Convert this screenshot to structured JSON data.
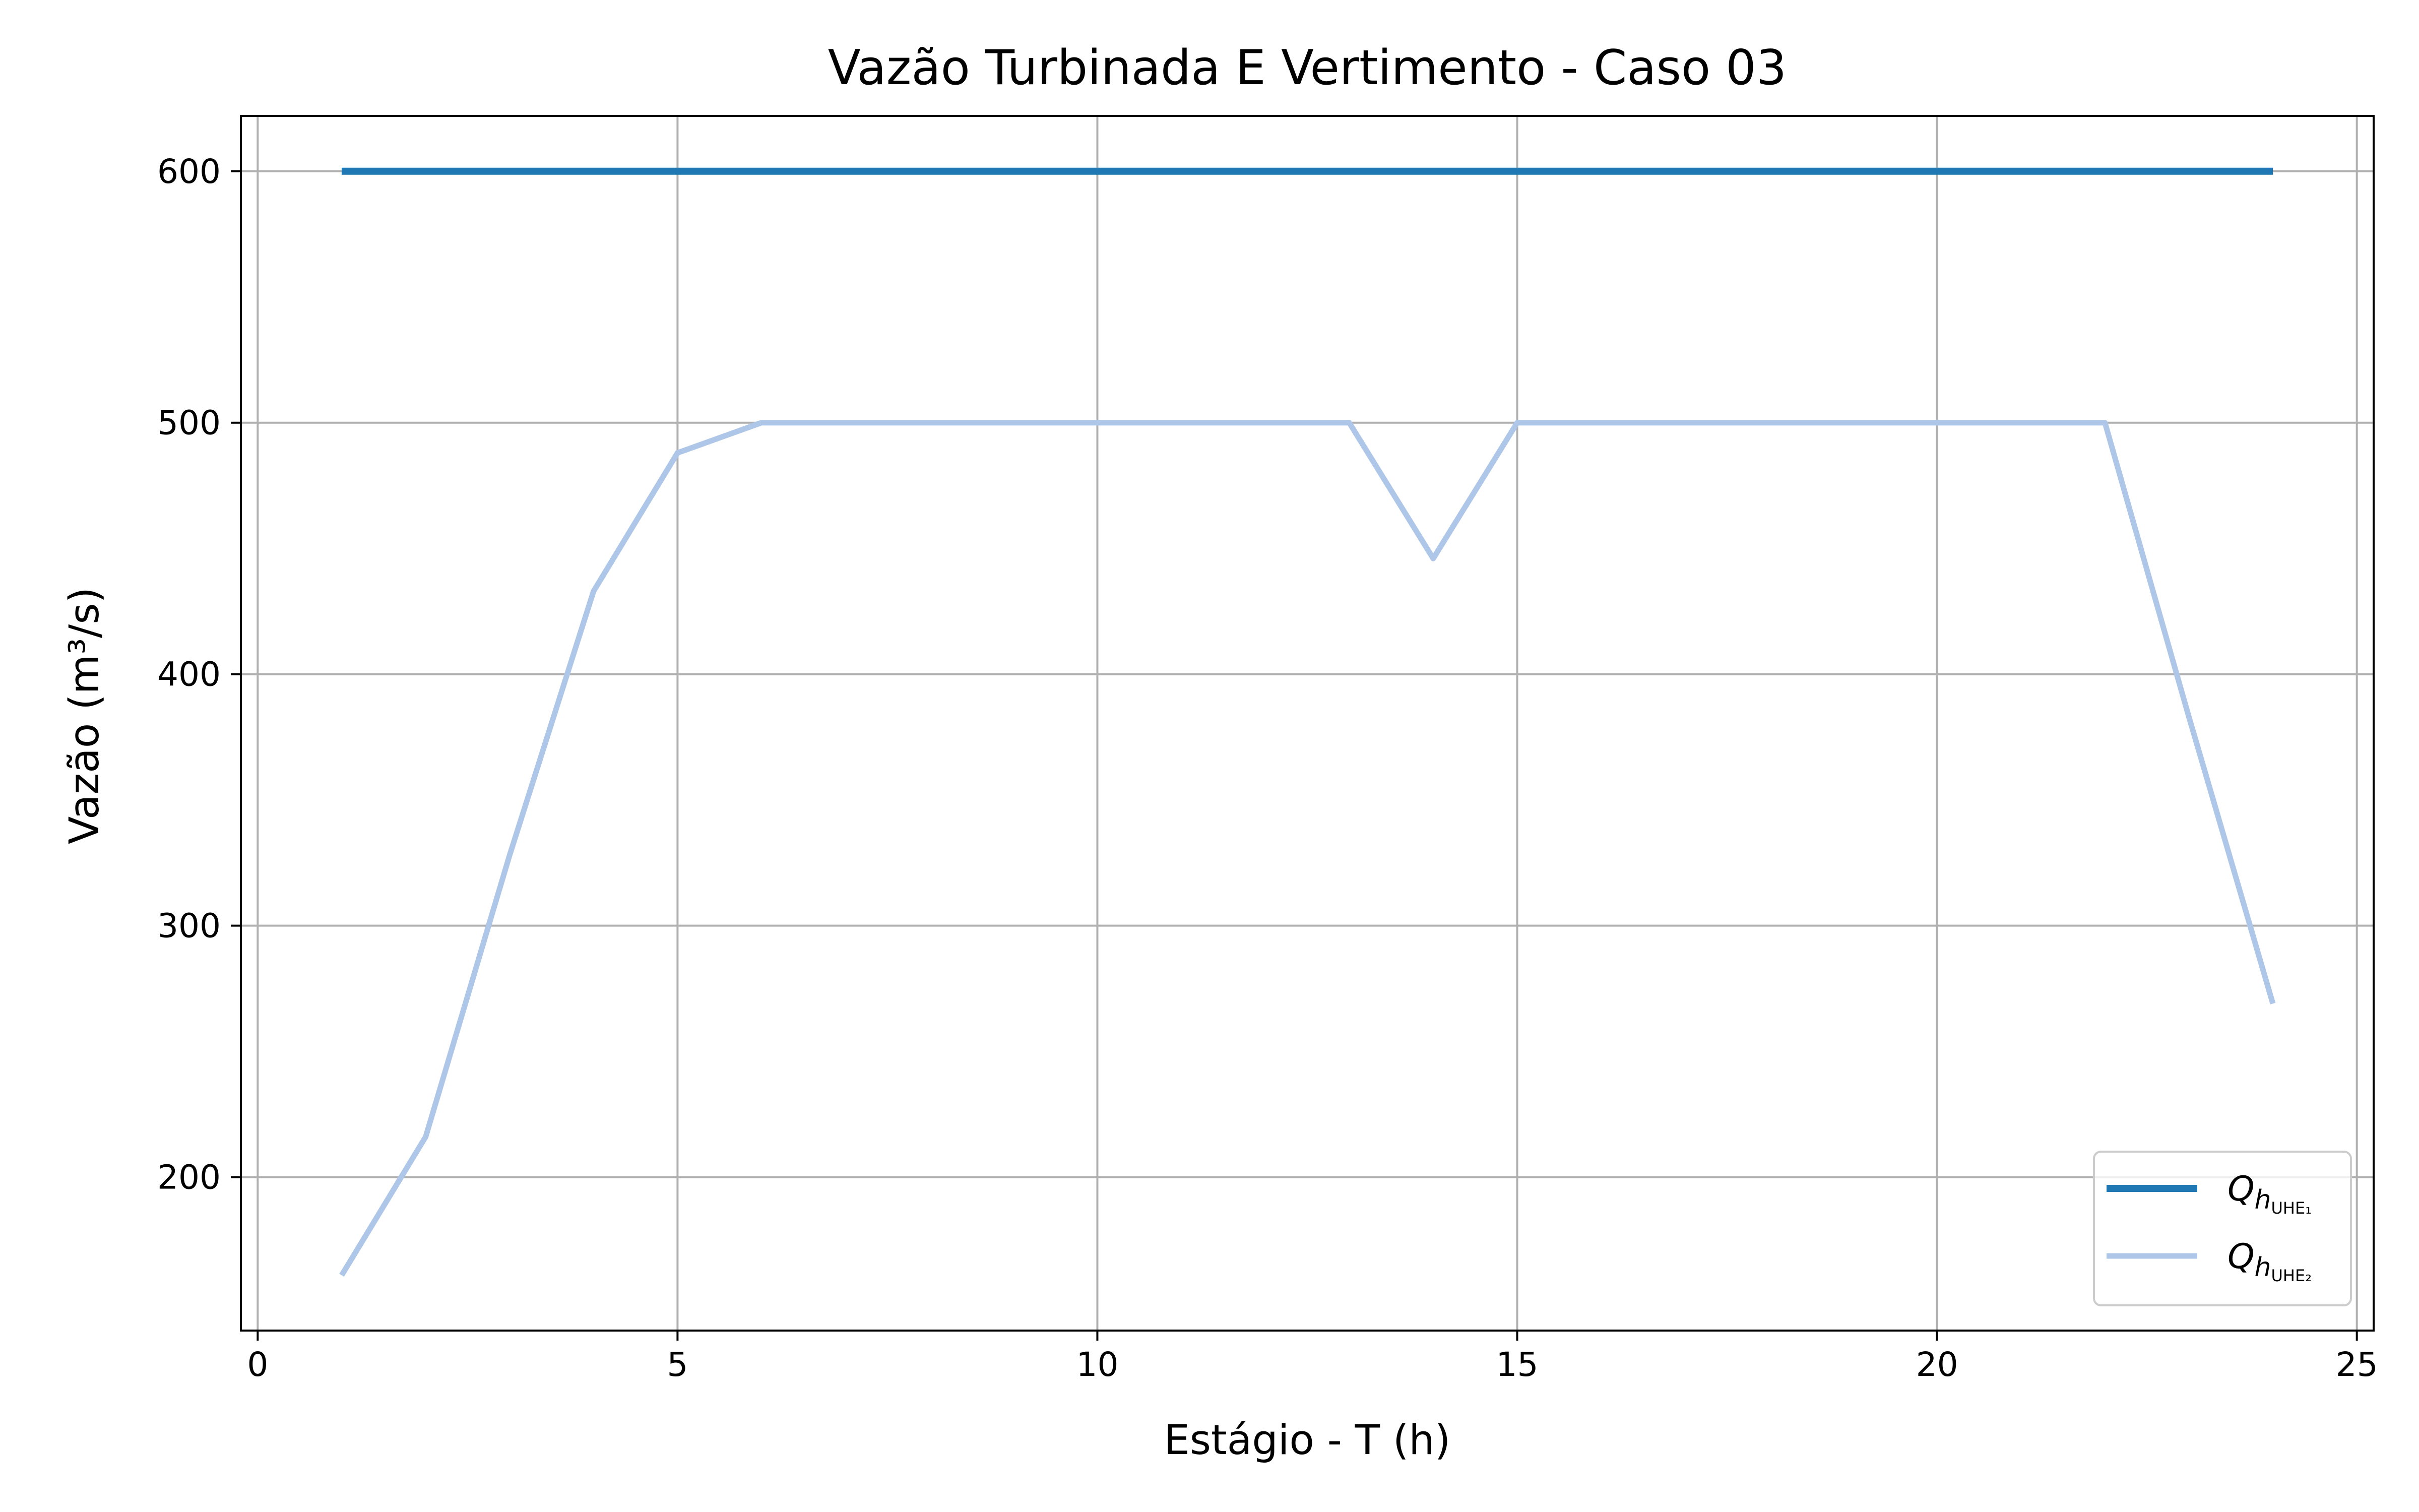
{
  "chart_data": {
    "type": "line",
    "title": "Vazão Turbinada E Vertimento - Caso 03",
    "xlabel": "Estágio - T (h)",
    "ylabel": "Vazão (m³/s)",
    "xlim": [
      -0.2,
      25.2
    ],
    "ylim": [
      139,
      622
    ],
    "grid": true,
    "legend_position": "bottom-right",
    "x_ticks": [
      0,
      5,
      10,
      15,
      20,
      25
    ],
    "y_ticks": [
      200,
      300,
      400,
      500,
      600
    ],
    "x": [
      1,
      2,
      3,
      4,
      5,
      6,
      7,
      8,
      9,
      10,
      11,
      12,
      13,
      14,
      15,
      16,
      17,
      18,
      19,
      20,
      21,
      22,
      23,
      24
    ],
    "series": [
      {
        "name": "Q_h_UHE1",
        "legend_base": "Q",
        "legend_sub": "h",
        "legend_subsub": "UHE₁",
        "color": "#1f77b4",
        "values": [
          600,
          600,
          600,
          600,
          600,
          600,
          600,
          600,
          600,
          600,
          600,
          600,
          600,
          600,
          600,
          600,
          600,
          600,
          600,
          600,
          600,
          600,
          600,
          600
        ]
      },
      {
        "name": "Q_h_UHE2",
        "legend_base": "Q",
        "legend_sub": "h",
        "legend_subsub": "UHE₂",
        "color": "#aec7e8",
        "values": [
          161,
          216,
          328,
          433,
          488,
          500,
          500,
          500,
          500,
          500,
          500,
          500,
          500,
          446,
          500,
          500,
          500,
          500,
          500,
          500,
          500,
          500,
          383,
          269
        ]
      }
    ]
  }
}
